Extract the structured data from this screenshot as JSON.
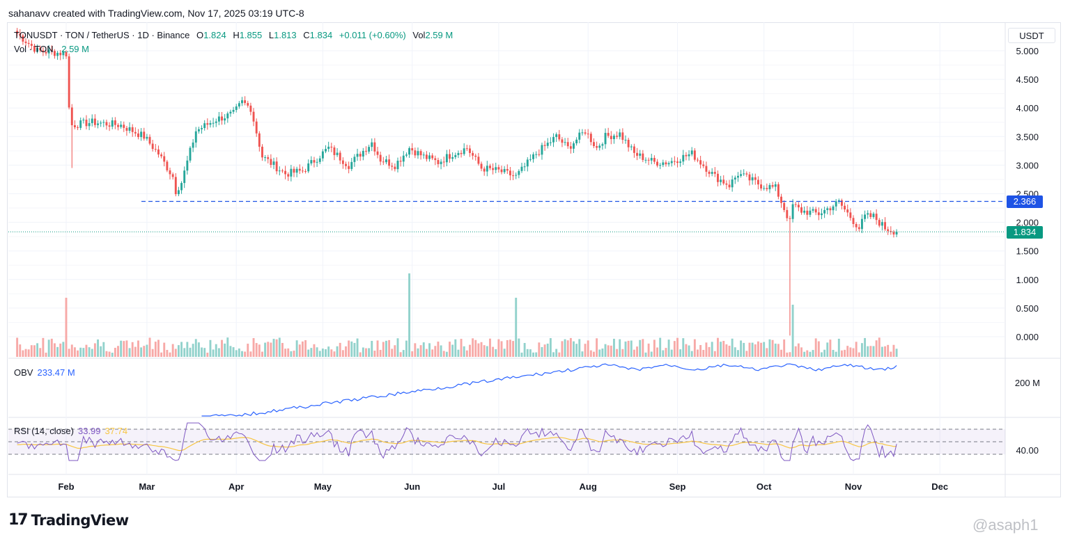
{
  "header": {
    "attribution": "sahanavv created with TradingView.com, Nov 17, 2025 03:19 UTC-8"
  },
  "legend": {
    "symbol": "TONUSDT · TON / TetherUS · 1D · Binance",
    "o_label": "O",
    "o": "1.824",
    "h_label": "H",
    "h": "1.855",
    "l_label": "L",
    "l": "1.813",
    "c_label": "C",
    "c": "1.834",
    "change": "+0.011 (+0.60%)",
    "vol_label": "Vol",
    "vol": "2.59 M",
    "vol_line_label": "Vol · TON",
    "vol_line_value": "2.59 M"
  },
  "obv": {
    "label": "OBV",
    "value": "233.47 M",
    "axis_label": "200 M"
  },
  "rsi": {
    "label": "RSI (14, close)",
    "value": "33.99",
    "ma_value": "37.74",
    "axis_label": "40.00"
  },
  "axis": {
    "unit": "USDT",
    "ticks": [
      "5.000",
      "4.500",
      "4.000",
      "3.500",
      "3.000",
      "2.500",
      "2.000",
      "1.500",
      "1.000",
      "0.500",
      "0.000"
    ],
    "months": [
      "Feb",
      "Mar",
      "Apr",
      "May",
      "Jun",
      "Jul",
      "Aug",
      "Sep",
      "Oct",
      "Nov",
      "Dec"
    ]
  },
  "tags": {
    "level": "2.366",
    "last": "1.834"
  },
  "colors": {
    "up": "#26a69a",
    "down": "#ef5350",
    "level": "#1e53e5",
    "obv": "#2962ff",
    "rsi": "#7e57c2",
    "rsi_ma": "#f7c542"
  },
  "logo": {
    "text": "TradingView"
  },
  "watermark": "@asaph1",
  "chart_data": {
    "type": "candlestick",
    "title": "TONUSDT · TON / TetherUS · 1D · Binance",
    "y_unit": "USDT",
    "ylim": [
      -0.3,
      5.3
    ],
    "horizontal_level": 2.366,
    "last_price": 1.834,
    "x": [
      "2025-01-15",
      "2025-01-22",
      "2025-02-01",
      "2025-02-02",
      "2025-02-03",
      "2025-02-10",
      "2025-02-20",
      "2025-02-28",
      "2025-03-05",
      "2025-03-10",
      "2025-03-11",
      "2025-03-13",
      "2025-03-18",
      "2025-03-25",
      "2025-03-31",
      "2025-04-03",
      "2025-04-06",
      "2025-04-10",
      "2025-04-18",
      "2025-04-24",
      "2025-05-03",
      "2025-05-10",
      "2025-05-18",
      "2025-05-21",
      "2025-05-26",
      "2025-05-31",
      "2025-06-05",
      "2025-06-10",
      "2025-06-15",
      "2025-06-20",
      "2025-06-25",
      "2025-07-01",
      "2025-07-07",
      "2025-07-14",
      "2025-07-21",
      "2025-07-25",
      "2025-07-28",
      "2025-07-31",
      "2025-08-04",
      "2025-08-07",
      "2025-08-12",
      "2025-08-17",
      "2025-08-24",
      "2025-08-29",
      "2025-09-06",
      "2025-09-14",
      "2025-09-19",
      "2025-09-22",
      "2025-09-24",
      "2025-09-30",
      "2025-10-05",
      "2025-10-10",
      "2025-10-11",
      "2025-10-14",
      "2025-10-20",
      "2025-10-27",
      "2025-11-03",
      "2025-11-05",
      "2025-11-08",
      "2025-11-12",
      "2025-11-16"
    ],
    "close": [
      5.3,
      5.0,
      4.95,
      4.0,
      3.7,
      3.75,
      3.7,
      3.5,
      3.2,
      2.8,
      2.55,
      2.7,
      3.6,
      3.8,
      3.9,
      4.1,
      4.0,
      3.15,
      2.85,
      2.9,
      3.3,
      3.0,
      3.4,
      3.1,
      3.0,
      3.3,
      3.15,
      3.05,
      3.2,
      3.3,
      2.95,
      2.9,
      2.8,
      3.2,
      3.5,
      3.3,
      3.45,
      3.6,
      3.3,
      3.5,
      3.55,
      3.2,
      3.05,
      3.05,
      3.2,
      2.8,
      2.65,
      2.85,
      2.8,
      2.65,
      2.6,
      2.0,
      2.3,
      2.2,
      2.15,
      2.35,
      1.9,
      2.1,
      2.1,
      1.9,
      1.834
    ],
    "volume_peaks": [
      "2025-02-01",
      "2025-05-31",
      "2025-07-07",
      "2025-10-11"
    ],
    "obv": {
      "last": 233.47,
      "unit": "M"
    },
    "rsi": {
      "period": 14,
      "last": 33.99,
      "ma_last": 37.74,
      "bands": [
        70,
        50,
        30
      ]
    }
  }
}
